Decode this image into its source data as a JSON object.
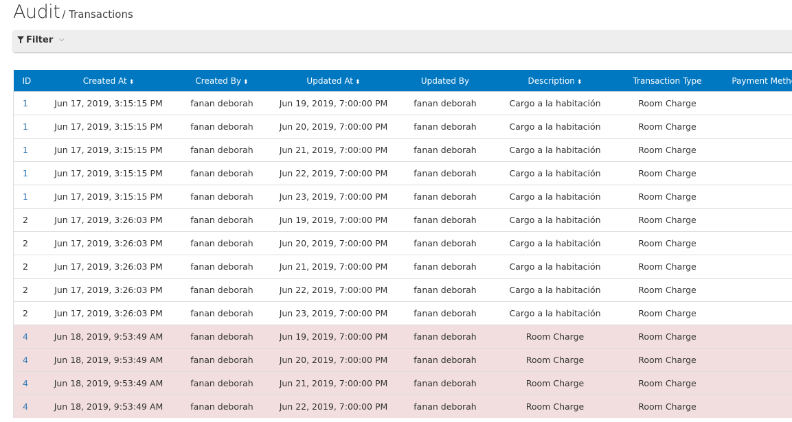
{
  "header": {
    "title": "Audit",
    "breadcrumb": "/ Transactions"
  },
  "filter": {
    "label": "Filter",
    "icon": "filter-icon",
    "toggle_icon": "chevron-down-icon"
  },
  "table": {
    "columns": [
      {
        "label": "ID",
        "sortable": false
      },
      {
        "label": "Created At",
        "sortable": true
      },
      {
        "label": "Created By",
        "sortable": true
      },
      {
        "label": "Updated At",
        "sortable": true
      },
      {
        "label": "Updated By",
        "sortable": false
      },
      {
        "label": "Description",
        "sortable": true
      },
      {
        "label": "Transaction Type",
        "sortable": false
      },
      {
        "label": "Payment Method",
        "sortable": false
      }
    ],
    "sort_icon": "⬍",
    "rows": [
      {
        "id": "1",
        "created_at": "Jun 17, 2019, 3:15:15 PM",
        "created_by": "fanan deborah",
        "updated_at": "Jun 19, 2019, 7:00:00 PM",
        "updated_by": "fanan deborah",
        "description": "Cargo a la habitación",
        "type": "Room Charge",
        "payment": "",
        "link": true,
        "highlight": false
      },
      {
        "id": "1",
        "created_at": "Jun 17, 2019, 3:15:15 PM",
        "created_by": "fanan deborah",
        "updated_at": "Jun 20, 2019, 7:00:00 PM",
        "updated_by": "fanan deborah",
        "description": "Cargo a la habitación",
        "type": "Room Charge",
        "payment": "",
        "link": true,
        "highlight": false
      },
      {
        "id": "1",
        "created_at": "Jun 17, 2019, 3:15:15 PM",
        "created_by": "fanan deborah",
        "updated_at": "Jun 21, 2019, 7:00:00 PM",
        "updated_by": "fanan deborah",
        "description": "Cargo a la habitación",
        "type": "Room Charge",
        "payment": "",
        "link": true,
        "highlight": false
      },
      {
        "id": "1",
        "created_at": "Jun 17, 2019, 3:15:15 PM",
        "created_by": "fanan deborah",
        "updated_at": "Jun 22, 2019, 7:00:00 PM",
        "updated_by": "fanan deborah",
        "description": "Cargo a la habitación",
        "type": "Room Charge",
        "payment": "",
        "link": true,
        "highlight": false
      },
      {
        "id": "1",
        "created_at": "Jun 17, 2019, 3:15:15 PM",
        "created_by": "fanan deborah",
        "updated_at": "Jun 23, 2019, 7:00:00 PM",
        "updated_by": "fanan deborah",
        "description": "Cargo a la habitación",
        "type": "Room Charge",
        "payment": "",
        "link": true,
        "highlight": false
      },
      {
        "id": "2",
        "created_at": "Jun 17, 2019, 3:26:03 PM",
        "created_by": "fanan deborah",
        "updated_at": "Jun 19, 2019, 7:00:00 PM",
        "updated_by": "fanan deborah",
        "description": "Cargo a la habitación",
        "type": "Room Charge",
        "payment": "",
        "link": false,
        "highlight": false
      },
      {
        "id": "2",
        "created_at": "Jun 17, 2019, 3:26:03 PM",
        "created_by": "fanan deborah",
        "updated_at": "Jun 20, 2019, 7:00:00 PM",
        "updated_by": "fanan deborah",
        "description": "Cargo a la habitación",
        "type": "Room Charge",
        "payment": "",
        "link": false,
        "highlight": false
      },
      {
        "id": "2",
        "created_at": "Jun 17, 2019, 3:26:03 PM",
        "created_by": "fanan deborah",
        "updated_at": "Jun 21, 2019, 7:00:00 PM",
        "updated_by": "fanan deborah",
        "description": "Cargo a la habitación",
        "type": "Room Charge",
        "payment": "",
        "link": false,
        "highlight": false
      },
      {
        "id": "2",
        "created_at": "Jun 17, 2019, 3:26:03 PM",
        "created_by": "fanan deborah",
        "updated_at": "Jun 22, 2019, 7:00:00 PM",
        "updated_by": "fanan deborah",
        "description": "Cargo a la habitación",
        "type": "Room Charge",
        "payment": "",
        "link": false,
        "highlight": false
      },
      {
        "id": "2",
        "created_at": "Jun 17, 2019, 3:26:03 PM",
        "created_by": "fanan deborah",
        "updated_at": "Jun 23, 2019, 7:00:00 PM",
        "updated_by": "fanan deborah",
        "description": "Cargo a la habitación",
        "type": "Room Charge",
        "payment": "",
        "link": false,
        "highlight": false
      },
      {
        "id": "4",
        "created_at": "Jun 18, 2019, 9:53:49 AM",
        "created_by": "fanan deborah",
        "updated_at": "Jun 19, 2019, 7:00:00 PM",
        "updated_by": "fanan deborah",
        "description": "Room Charge",
        "type": "Room Charge",
        "payment": "",
        "link": true,
        "highlight": true
      },
      {
        "id": "4",
        "created_at": "Jun 18, 2019, 9:53:49 AM",
        "created_by": "fanan deborah",
        "updated_at": "Jun 20, 2019, 7:00:00 PM",
        "updated_by": "fanan deborah",
        "description": "Room Charge",
        "type": "Room Charge",
        "payment": "",
        "link": true,
        "highlight": true
      },
      {
        "id": "4",
        "created_at": "Jun 18, 2019, 9:53:49 AM",
        "created_by": "fanan deborah",
        "updated_at": "Jun 21, 2019, 7:00:00 PM",
        "updated_by": "fanan deborah",
        "description": "Room Charge",
        "type": "Room Charge",
        "payment": "",
        "link": true,
        "highlight": true
      },
      {
        "id": "4",
        "created_at": "Jun 18, 2019, 9:53:49 AM",
        "created_by": "fanan deborah",
        "updated_at": "Jun 22, 2019, 7:00:00 PM",
        "updated_by": "fanan deborah",
        "description": "Room Charge",
        "type": "Room Charge",
        "payment": "",
        "link": true,
        "highlight": true
      }
    ]
  },
  "colors": {
    "header_bg": "#0078c1",
    "link": "#337ab7",
    "highlight_row": "#f2dede"
  }
}
